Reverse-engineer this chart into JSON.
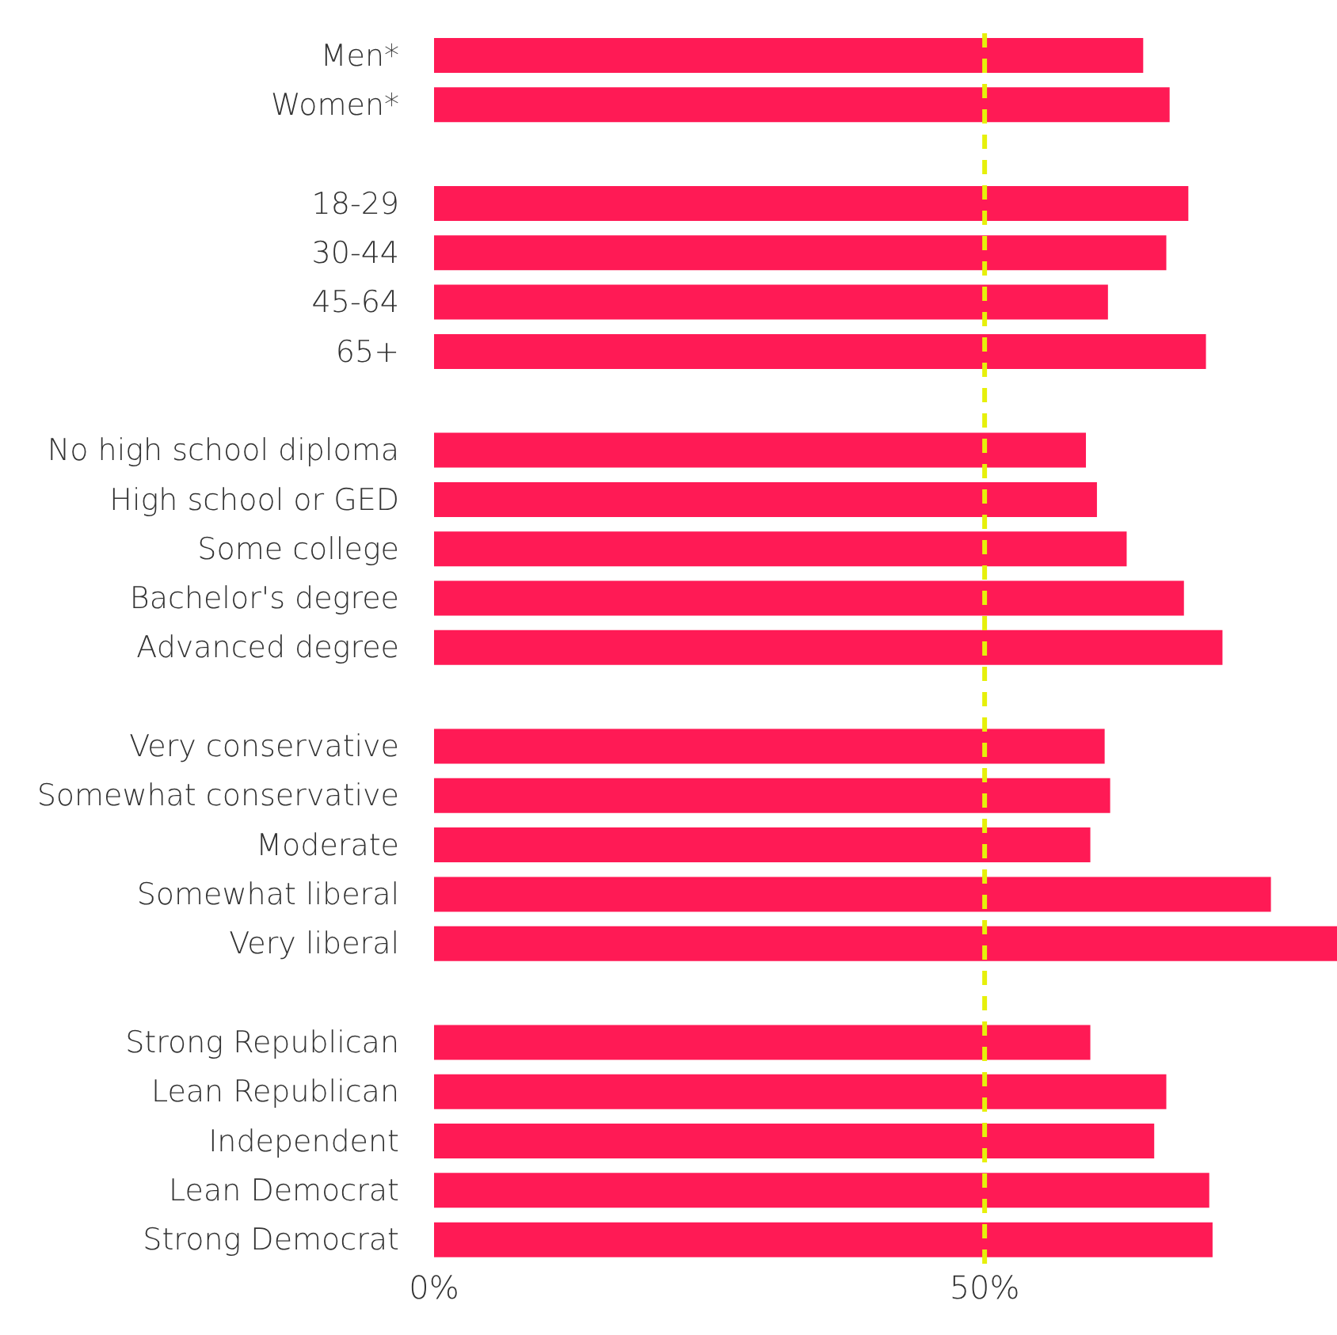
{
  "chart_data": {
    "type": "bar",
    "orientation": "horizontal",
    "categories": [
      "Men*",
      "Women*",
      null,
      "18-29",
      "30-44",
      "45-64",
      "65+",
      null,
      "No high school diploma",
      "High school or GED",
      "Some college",
      "Bachelor's degree",
      "Advanced degree",
      null,
      "Very conservative",
      "Somewhat conservative",
      "Moderate",
      "Somewhat liberal",
      "Very liberal",
      null,
      "Strong Republican",
      "Lean Republican",
      "Independent",
      "Lean Democrat",
      "Strong Democrat"
    ],
    "values": [
      64.4,
      66.8,
      null,
      68.5,
      66.5,
      61.2,
      70.1,
      null,
      59.2,
      60.2,
      62.9,
      68.1,
      71.6,
      null,
      60.9,
      61.4,
      59.6,
      76.0,
      82,
      null,
      59.6,
      66.5,
      65.4,
      70.4,
      70.7
    ],
    "color": "#ff1a55",
    "xlim": [
      0,
      82
    ],
    "xticks": [
      {
        "value": 0,
        "label": "0%"
      },
      {
        "value": 50,
        "label": "50%"
      }
    ],
    "ref_lines": [
      {
        "axis": "x",
        "value": 50,
        "color": "#e6f00a",
        "line_style": "dashed"
      }
    ],
    "grid": false
  }
}
